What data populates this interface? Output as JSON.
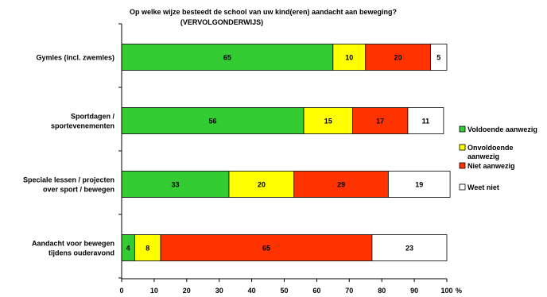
{
  "chart_data": {
    "type": "bar",
    "orientation": "horizontal",
    "stacked": true,
    "title": "Op welke wijze besteedt de school van uw kind(eren) aandacht aan beweging?",
    "subtitle": "(VERVOLGONDERWIJS)",
    "categories": [
      [
        "Gymles (incl. zwemles)"
      ],
      [
        "Sportdagen /",
        "sportevenementen"
      ],
      [
        "Speciale lessen / projecten",
        "over sport / bewegen"
      ],
      [
        "Aandacht voor bewegen",
        "tijdens ouderavond"
      ]
    ],
    "series": [
      {
        "name": "Voldoende aanwezig",
        "color": "#33cc33",
        "values": [
          65,
          56,
          33,
          4
        ]
      },
      {
        "name": "Onvoldoende aanwezig",
        "label_lines": [
          "Onvoldoende",
          "aanwezig"
        ],
        "color": "#ffff00",
        "values": [
          10,
          15,
          20,
          8
        ]
      },
      {
        "name": "Niet aanwezig",
        "color": "#ff3300",
        "values": [
          20,
          17,
          29,
          65
        ]
      },
      {
        "name": "Weet niet",
        "color": "#ffffff",
        "values": [
          5,
          11,
          19,
          23
        ]
      }
    ],
    "xlim": [
      0,
      100
    ],
    "xticks": [
      0,
      10,
      20,
      30,
      40,
      50,
      60,
      70,
      80,
      90,
      100
    ],
    "xtick_labels": [
      "0",
      "10",
      "20",
      "30",
      "40",
      "50",
      "60",
      "70",
      "80",
      "90",
      "100"
    ],
    "x_unit": "%",
    "legend_position": "right",
    "grid": false
  }
}
